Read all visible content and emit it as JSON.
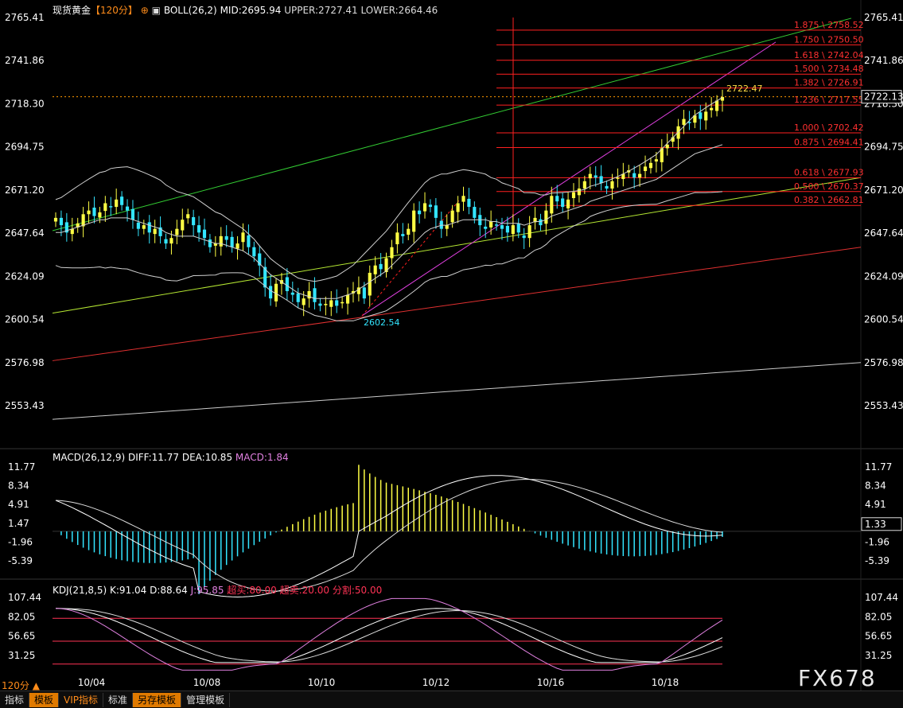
{
  "header": {
    "symbol": "现货黄金",
    "period": "【120分】",
    "boll_label": "BOLL(26,2)",
    "boll_mid": "MID:2695.94",
    "boll_upper": "UPPER:2727.41",
    "boll_lower": "LOWER:2664.46"
  },
  "macd_header": {
    "label": "MACD(26,12,9)",
    "diff": "DIFF:11.77",
    "dea": "DEA:10.85",
    "macd": "MACD:1.84"
  },
  "kdj_header": {
    "label": "KDJ(21,8,5)",
    "k": "K:91.04",
    "d": "D:88.64",
    "j": "J:95.85",
    "overbought": "超买:80.00",
    "oversold": "超卖:20.00",
    "split": "分割:50.00"
  },
  "colors": {
    "up": "#ffff44",
    "down": "#33e5ff",
    "boll": "#d0d0d0",
    "fib": "#ff2020",
    "green_line": "#33cc33",
    "yellowgreen_line": "#b4e632",
    "red_line": "#e03030",
    "magenta_line": "#e040e0",
    "grid_text": "#ffffff"
  },
  "chart_data": [
    {
      "type": "candlestick",
      "title": "",
      "ylim": [
        2540,
        2770
      ],
      "y_ticks": [
        "2765.41",
        "2741.86",
        "2718.30",
        "2694.75",
        "2671.20",
        "2647.64",
        "2624.09",
        "2600.54",
        "2576.98",
        "2553.43"
      ],
      "x_ticks": [
        "10/04",
        "10/08",
        "10/10",
        "10/12",
        "10/16",
        "10/18"
      ],
      "current_price": "2722.13",
      "high_label": "2722.47",
      "low_label": "2602.54",
      "fib_levels": [
        {
          "label": "1.875 \\ 2758.52",
          "value": 2758.52
        },
        {
          "label": "1.750 \\ 2750.50",
          "value": 2750.5
        },
        {
          "label": "1.618 \\ 2742.04",
          "value": 2742.04
        },
        {
          "label": "1.500 \\ 2734.48",
          "value": 2734.48
        },
        {
          "label": "1.382 \\ 2726.91",
          "value": 2726.91
        },
        {
          "label": "1.236 \\ 2717.55",
          "value": 2717.55
        },
        {
          "label": "1.000 \\ 2702.42",
          "value": 2702.42
        },
        {
          "label": "0.875 \\ 2694.41",
          "value": 2694.41
        },
        {
          "label": "0.618 \\ 2677.93",
          "value": 2677.93
        },
        {
          "label": "0.500 \\ 2670.37",
          "value": 2670.37
        },
        {
          "label": "0.382 \\ 2662.81",
          "value": 2662.81
        }
      ],
      "closes": [
        2656,
        2652,
        2648,
        2650,
        2653,
        2658,
        2660,
        2657,
        2659,
        2664,
        2662,
        2666,
        2663,
        2660,
        2655,
        2650,
        2652,
        2648,
        2650,
        2646,
        2642,
        2645,
        2650,
        2655,
        2658,
        2652,
        2648,
        2645,
        2640,
        2642,
        2646,
        2644,
        2640,
        2642,
        2648,
        2640,
        2635,
        2630,
        2618,
        2612,
        2620,
        2622,
        2616,
        2614,
        2610,
        2612,
        2616,
        2610,
        2608,
        2609,
        2611,
        2608,
        2610,
        2614,
        2616,
        2618,
        2612,
        2626,
        2630,
        2628,
        2634,
        2640,
        2648,
        2646,
        2650,
        2660,
        2658,
        2664,
        2662,
        2656,
        2650,
        2652,
        2660,
        2664,
        2668,
        2662,
        2656,
        2652,
        2650,
        2654,
        2652,
        2650,
        2648,
        2652,
        2648,
        2645,
        2652,
        2656,
        2652,
        2660,
        2668,
        2665,
        2662,
        2666,
        2670,
        2672,
        2676,
        2680,
        2678,
        2675,
        2672,
        2676,
        2678,
        2680,
        2682,
        2678,
        2680,
        2684,
        2686,
        2688,
        2694,
        2696,
        2700,
        2706,
        2710,
        2708,
        2712,
        2710,
        2714,
        2716,
        2720,
        2722
      ],
      "boll_mid": [
        2648,
        2648,
        2649,
        2650,
        2651,
        2652,
        2653,
        2654,
        2655,
        2655,
        2656,
        2656,
        2656,
        2656,
        2655,
        2654,
        2653,
        2652,
        2651,
        2650,
        2648,
        2647,
        2646,
        2646,
        2646,
        2646,
        2645,
        2644,
        2643,
        2642,
        2642,
        2641,
        2640,
        2639,
        2638,
        2636,
        2634,
        2631,
        2628,
        2625,
        2623,
        2621,
        2619,
        2617,
        2615,
        2614,
        2613,
        2612,
        2612,
        2612,
        2612,
        2612,
        2613,
        2614,
        2615,
        2617,
        2619,
        2621,
        2623,
        2625,
        2627,
        2630,
        2633,
        2636,
        2639,
        2642,
        2645,
        2648,
        2650,
        2651,
        2652,
        2652,
        2653,
        2654,
        2655,
        2655,
        2655,
        2655,
        2655,
        2654,
        2654,
        2653,
        2653,
        2653,
        2653,
        2652,
        2653,
        2654,
        2654,
        2655,
        2657,
        2658,
        2659,
        2660,
        2661,
        2662,
        2663,
        2665,
        2666,
        2667,
        2668,
        2669,
        2670,
        2671,
        2672,
        2673,
        2674,
        2675,
        2676,
        2677,
        2679,
        2681,
        2683,
        2685,
        2687,
        2689,
        2691,
        2692,
        2693,
        2694,
        2695,
        2696
      ]
    },
    {
      "type": "bar+line",
      "title": "",
      "ylim": [
        -7.5,
        13
      ],
      "y_ticks": [
        "11.77",
        "8.34",
        "4.91",
        "1.47",
        "-1.96",
        "-5.39"
      ],
      "current_value": "1.33"
    },
    {
      "type": "line",
      "title": "",
      "ylim": [
        15,
        112
      ],
      "y_ticks": [
        "107.44",
        "82.05",
        "56.65",
        "31.25"
      ]
    }
  ],
  "bottom_tabs": [
    "指标",
    "模板",
    "VIP指标",
    "标准",
    "另存模板",
    "管理模板"
  ],
  "period_badge": "120分 ▲",
  "brand": "FX678"
}
